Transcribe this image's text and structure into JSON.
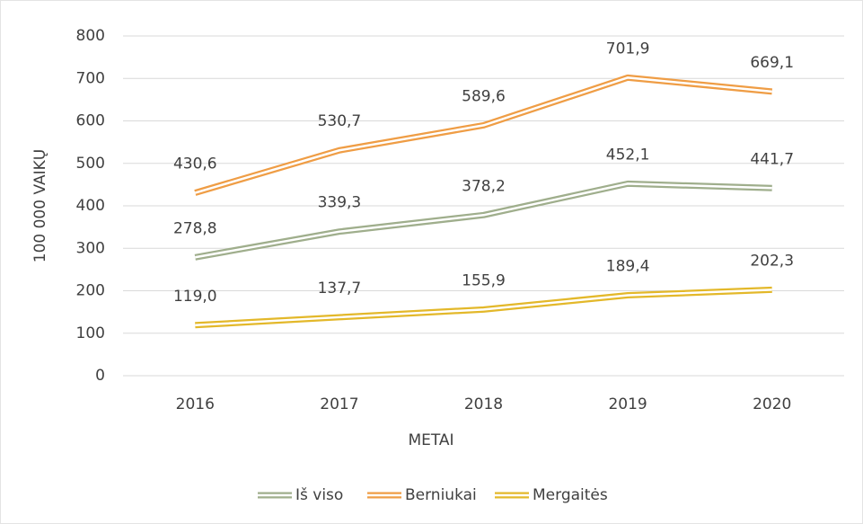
{
  "chart_data": {
    "type": "line",
    "categories": [
      "2016",
      "2017",
      "2018",
      "2019",
      "2020"
    ],
    "series": [
      {
        "name": "Iš viso",
        "color": "#9fae8c",
        "values": [
          278.8,
          339.3,
          378.2,
          452.1,
          441.7
        ],
        "value_labels": [
          "278,8",
          "339,3",
          "378,2",
          "452,1",
          "441,7"
        ]
      },
      {
        "name": "Berniukai",
        "color": "#ef9d45",
        "values": [
          430.6,
          530.7,
          589.6,
          701.9,
          669.1
        ],
        "value_labels": [
          "430,6",
          "530,7",
          "589,6",
          "701,9",
          "669,1"
        ]
      },
      {
        "name": "Mergaitės",
        "color": "#e3b82a",
        "values": [
          119.0,
          137.7,
          155.9,
          189.4,
          202.3
        ],
        "value_labels": [
          "119,0",
          "137,7",
          "155,9",
          "189,4",
          "202,3"
        ]
      }
    ],
    "xlabel": "METAI",
    "ylabel": "100 000 VAIKŲ",
    "ylim": [
      0,
      800
    ],
    "yticks": [
      0,
      100,
      200,
      300,
      400,
      500,
      600,
      700,
      800
    ],
    "grid": true,
    "legend": "bottom"
  }
}
